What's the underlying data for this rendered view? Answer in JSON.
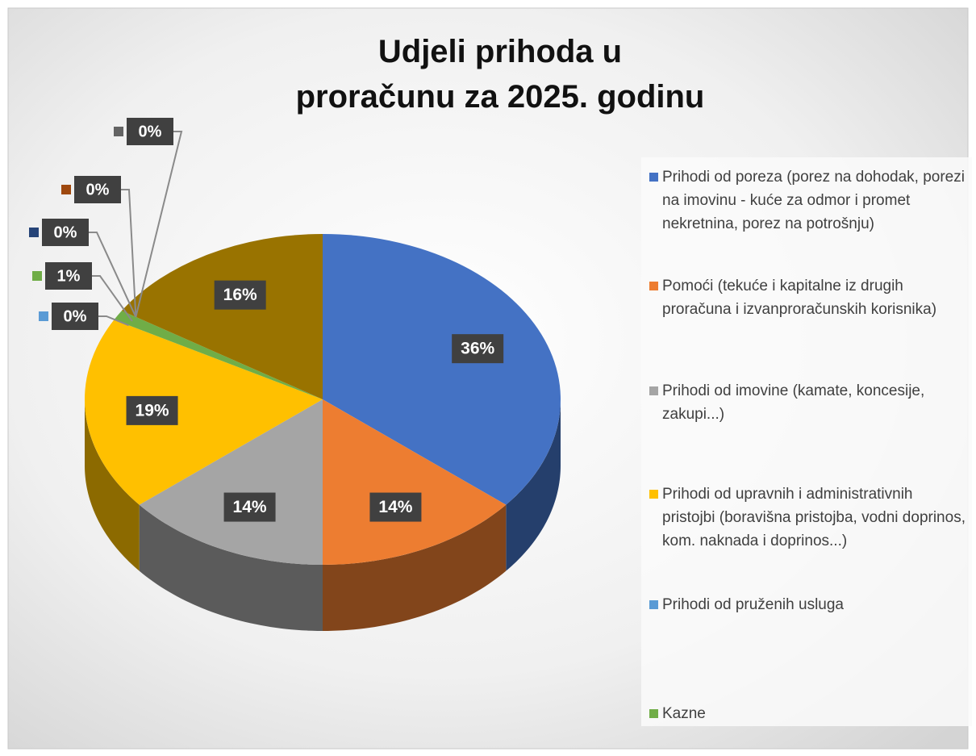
{
  "chart_data": {
    "type": "pie3d",
    "title": [
      "Udjeli prihoda u",
      "proračunu za 2025. godinu"
    ],
    "categories": [
      "Prihodi od poreza (porez na dohodak, porezi na imovinu - kuće za odmor i promet nekretnina, porez na potrošnju)",
      "Pomoći (tekuće i kapitalne iz drugih proračuna i izvanproračunskih korisnika)",
      "Prihodi od imovine (kamate, koncesije, zakupi...)",
      "Prihodi od upravnih i administrativnih pristojbi (boravišna pristojba, vodni doprinos, kom. naknada i doprinos...)",
      "Prihodi od pruženih usluga",
      "Kazne",
      null,
      null,
      null,
      null
    ],
    "values": [
      36,
      14,
      14,
      19,
      0,
      1,
      0,
      0,
      0,
      16
    ],
    "value_labels": [
      "36%",
      "14%",
      "14%",
      "19%",
      "0%",
      "1%",
      "0%",
      "0%",
      "0%",
      "16%"
    ],
    "colors": [
      "#4472c4",
      "#ed7d31",
      "#a5a5a5",
      "#ffc000",
      "#5b9bd5",
      "#70ad47",
      "#264478",
      "#9e480e",
      "#636363",
      "#997300"
    ]
  }
}
